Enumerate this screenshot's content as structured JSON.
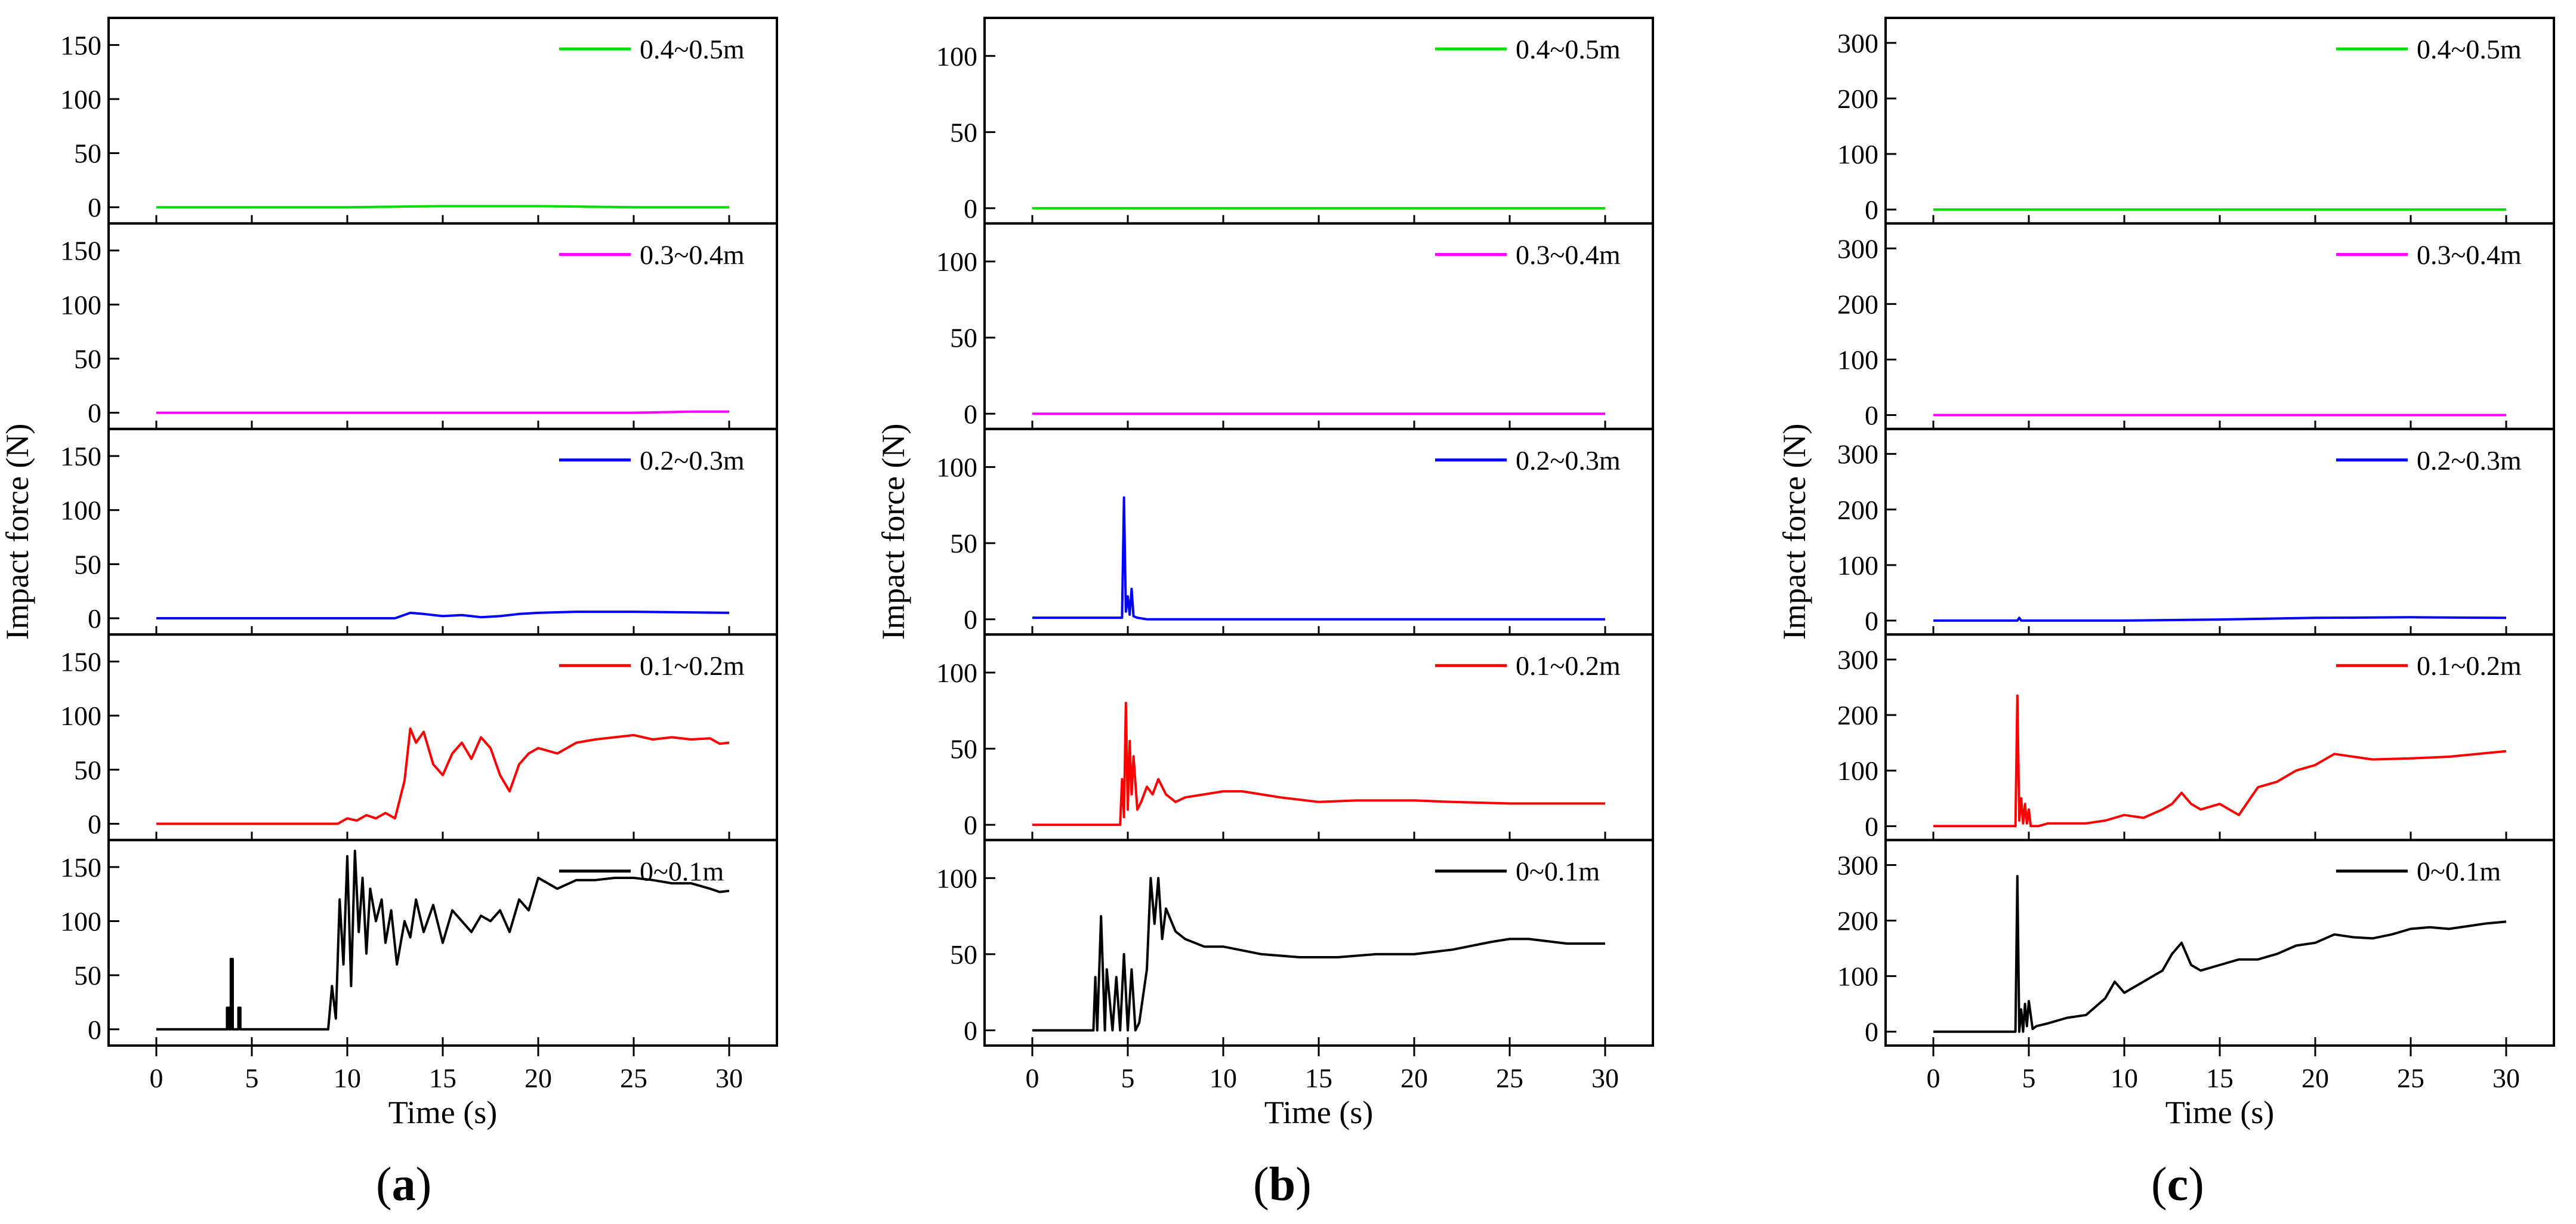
{
  "figure": {
    "panels": [
      {
        "id": "a",
        "label": "a",
        "xlabel": "Time (s)",
        "ylabel": "Impact force (N)"
      },
      {
        "id": "b",
        "label": "b",
        "xlabel": "Time (s)",
        "ylabel": "Impact force (N)"
      },
      {
        "id": "c",
        "label": "c",
        "xlabel": "Time (s)",
        "ylabel": "Impact force (N)"
      }
    ]
  },
  "chart_data": [
    {
      "type": "line",
      "panel": "a",
      "xlabel": "Time (s)",
      "ylabel": "Impact force (N)",
      "xlim": [
        -2.5,
        32.5
      ],
      "xticks": [
        0,
        5,
        10,
        15,
        20,
        25,
        30
      ],
      "ylim": [
        -15,
        175
      ],
      "yticks": [
        0,
        50,
        100,
        150
      ],
      "series": [
        {
          "name": "0.4~0.5m",
          "color": "#00e000",
          "x": [
            0,
            10,
            15,
            20,
            25,
            30
          ],
          "y": [
            0,
            0,
            1,
            1,
            0,
            0
          ]
        },
        {
          "name": "0.3~0.4m",
          "color": "#ff00ff",
          "x": [
            0,
            10,
            20,
            25,
            28,
            30
          ],
          "y": [
            0,
            0,
            0,
            0,
            1,
            1
          ]
        },
        {
          "name": "0.2~0.3m",
          "color": "#0000ff",
          "x": [
            0,
            12.5,
            13.3,
            14,
            15,
            16,
            17,
            18,
            19,
            20,
            22,
            25,
            30
          ],
          "y": [
            0,
            0,
            5,
            4,
            2,
            3,
            1,
            2,
            4,
            5,
            6,
            6,
            5
          ]
        },
        {
          "name": "0.1~0.2m",
          "color": "#ff0000",
          "x": [
            0,
            9.5,
            10,
            10.5,
            11,
            11.5,
            12,
            12.5,
            13,
            13.3,
            13.6,
            14,
            14.5,
            15,
            15.5,
            16,
            16.5,
            17,
            17.5,
            18,
            18.5,
            19,
            19.5,
            20,
            21,
            22,
            23,
            24,
            25,
            26,
            27,
            28,
            29,
            29.5,
            30
          ],
          "y": [
            0,
            0,
            5,
            3,
            8,
            5,
            10,
            5,
            40,
            88,
            75,
            85,
            55,
            45,
            65,
            75,
            60,
            80,
            70,
            45,
            30,
            55,
            65,
            70,
            65,
            75,
            78,
            80,
            82,
            78,
            80,
            78,
            79,
            74,
            75
          ]
        },
        {
          "name": "0~0.1m",
          "color": "#000000",
          "x": [
            0,
            3.7,
            3.7,
            3.8,
            3.8,
            3.9,
            3.9,
            4.0,
            4.0,
            4.3,
            4.3,
            4.4,
            4.4,
            9.0,
            9.2,
            9.4,
            9.6,
            9.8,
            10.0,
            10.2,
            10.4,
            10.6,
            10.8,
            11.0,
            11.2,
            11.5,
            11.8,
            12.0,
            12.3,
            12.6,
            13.0,
            13.3,
            13.6,
            14.0,
            14.5,
            15.0,
            15.5,
            16.0,
            16.5,
            17.0,
            17.5,
            18.0,
            18.5,
            19.0,
            19.5,
            20.0,
            21.0,
            22.0,
            23.0,
            24.0,
            25.0,
            26.0,
            27.0,
            28.0,
            29.0,
            29.5,
            30.0
          ],
          "y": [
            0,
            0,
            20,
            20,
            0,
            0,
            65,
            65,
            0,
            0,
            20,
            20,
            0,
            0,
            40,
            10,
            120,
            60,
            160,
            40,
            165,
            90,
            140,
            70,
            130,
            100,
            120,
            80,
            110,
            60,
            100,
            85,
            120,
            90,
            115,
            80,
            110,
            100,
            90,
            105,
            100,
            110,
            90,
            120,
            110,
            140,
            130,
            138,
            138,
            140,
            140,
            138,
            135,
            135,
            130,
            127,
            128
          ]
        }
      ]
    },
    {
      "type": "line",
      "panel": "b",
      "xlabel": "Time (s)",
      "ylabel": "Impact force (N)",
      "xlim": [
        -2.5,
        32.5
      ],
      "xticks": [
        0,
        5,
        10,
        15,
        20,
        25,
        30
      ],
      "ylim": [
        -10,
        125
      ],
      "yticks": [
        0,
        50,
        100
      ],
      "series": [
        {
          "name": "0.4~0.5m",
          "color": "#00e000",
          "x": [
            0,
            30
          ],
          "y": [
            0,
            0
          ]
        },
        {
          "name": "0.3~0.4m",
          "color": "#ff00ff",
          "x": [
            0,
            30
          ],
          "y": [
            0,
            0
          ]
        },
        {
          "name": "0.2~0.3m",
          "color": "#0000ff",
          "x": [
            0,
            4.7,
            4.8,
            4.9,
            5.0,
            5.1,
            5.2,
            5.3,
            5.5,
            6,
            10,
            20,
            30
          ],
          "y": [
            1,
            1,
            80,
            5,
            15,
            3,
            20,
            2,
            1,
            0,
            0,
            0,
            0
          ]
        },
        {
          "name": "0.1~0.2m",
          "color": "#ff0000",
          "x": [
            0,
            4.6,
            4.7,
            4.8,
            4.9,
            5.0,
            5.1,
            5.2,
            5.3,
            5.5,
            5.7,
            6.0,
            6.3,
            6.6,
            7.0,
            7.5,
            8.0,
            9.0,
            10,
            11,
            12,
            13,
            15,
            17,
            20,
            22,
            25,
            28,
            30
          ],
          "y": [
            0,
            0,
            30,
            5,
            80,
            10,
            55,
            20,
            45,
            10,
            15,
            25,
            20,
            30,
            20,
            15,
            18,
            20,
            22,
            22,
            20,
            18,
            15,
            16,
            16,
            15,
            14,
            14,
            14
          ]
        },
        {
          "name": "0~0.1m",
          "color": "#000000",
          "x": [
            0,
            3.2,
            3.3,
            3.4,
            3.6,
            3.8,
            3.9,
            4.2,
            4.4,
            4.6,
            4.8,
            5.0,
            5.2,
            5.4,
            5.6,
            6.0,
            6.2,
            6.4,
            6.6,
            6.8,
            7.0,
            7.5,
            8.0,
            9.0,
            10,
            12,
            14,
            16,
            18,
            20,
            22,
            24,
            25,
            26,
            28,
            30
          ],
          "y": [
            0,
            0,
            35,
            0,
            75,
            0,
            40,
            0,
            35,
            0,
            50,
            0,
            40,
            0,
            5,
            40,
            100,
            70,
            100,
            60,
            80,
            65,
            60,
            55,
            55,
            50,
            48,
            48,
            50,
            50,
            53,
            58,
            60,
            60,
            57,
            57
          ]
        }
      ]
    },
    {
      "type": "line",
      "panel": "c",
      "xlabel": "Time (s)",
      "ylabel": "Impact force (N)",
      "xlim": [
        -2.5,
        32.5
      ],
      "xticks": [
        0,
        5,
        10,
        15,
        20,
        25,
        30
      ],
      "ylim": [
        -25,
        345
      ],
      "yticks": [
        0,
        100,
        200,
        300
      ],
      "series": [
        {
          "name": "0.4~0.5m",
          "color": "#00e000",
          "x": [
            0,
            30
          ],
          "y": [
            0,
            0
          ]
        },
        {
          "name": "0.3~0.4m",
          "color": "#ff00ff",
          "x": [
            0,
            30
          ],
          "y": [
            0,
            0
          ]
        },
        {
          "name": "0.2~0.3m",
          "color": "#0000ff",
          "x": [
            0,
            4.4,
            4.5,
            4.6,
            10,
            15,
            20,
            25,
            30
          ],
          "y": [
            0,
            0,
            5,
            0,
            0,
            2,
            5,
            6,
            5
          ]
        },
        {
          "name": "0.1~0.2m",
          "color": "#ff0000",
          "x": [
            0,
            4.3,
            4.4,
            4.5,
            4.6,
            4.7,
            4.8,
            4.9,
            5.0,
            5.1,
            5.2,
            5.5,
            6,
            7,
            8,
            9,
            10,
            11,
            12,
            12.5,
            13,
            13.5,
            14,
            15,
            16,
            16.5,
            17,
            18,
            19,
            20,
            21,
            22,
            23,
            25,
            27,
            30
          ],
          "y": [
            0,
            0,
            235,
            10,
            50,
            5,
            40,
            5,
            30,
            0,
            0,
            0,
            5,
            5,
            5,
            10,
            20,
            15,
            30,
            40,
            60,
            40,
            30,
            40,
            20,
            45,
            70,
            80,
            100,
            110,
            130,
            125,
            120,
            122,
            125,
            135
          ]
        },
        {
          "name": "0~0.1m",
          "color": "#000000",
          "x": [
            0,
            4.3,
            4.4,
            4.5,
            4.6,
            4.7,
            4.8,
            4.9,
            5.0,
            5.2,
            5.4,
            6,
            7,
            8,
            9,
            9.5,
            10,
            11,
            12,
            12.5,
            13,
            13.5,
            14,
            15,
            16,
            17,
            18,
            19,
            20,
            21,
            22,
            23,
            24,
            25,
            26,
            27,
            28,
            29,
            30
          ],
          "y": [
            0,
            0,
            280,
            0,
            40,
            0,
            50,
            10,
            55,
            5,
            10,
            15,
            25,
            30,
            60,
            90,
            70,
            90,
            110,
            140,
            160,
            120,
            110,
            120,
            130,
            130,
            140,
            155,
            160,
            175,
            170,
            168,
            175,
            185,
            188,
            185,
            190,
            195,
            198
          ]
        }
      ]
    }
  ]
}
